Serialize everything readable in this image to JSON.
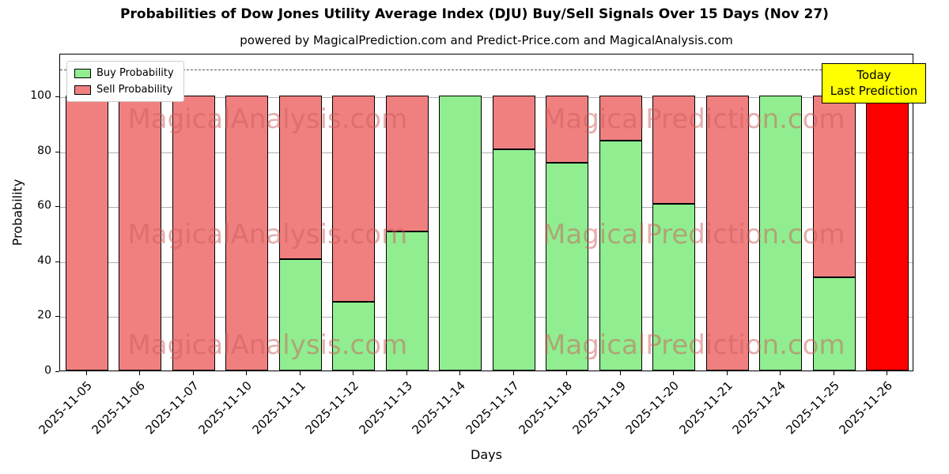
{
  "title": "Probabilities of Dow Jones Utility Average Index (DJU) Buy/Sell Signals Over 15 Days (Nov 27)",
  "subtitle": "powered by MagicalPrediction.com and Predict-Price.com and MagicalAnalysis.com",
  "legend": {
    "buy": "Buy Probability",
    "sell": "Sell Probability"
  },
  "annotation": {
    "line1": "Today",
    "line2": "Last Prediction"
  },
  "watermarks": [
    "MagicalAnalysis.com",
    "MagicalPrediction.com"
  ],
  "colors": {
    "buy": "#90ee90",
    "sell": "#f08080",
    "today_bar": "#ff0000",
    "annotation_bg": "#ffff00",
    "grid": "#b0b0b0",
    "watermark": "rgba(205,92,92,0.5)",
    "bar_edge": "#000000"
  },
  "chart_data": {
    "type": "bar",
    "stacked": true,
    "title": "Probabilities of Dow Jones Utility Average Index (DJU) Buy/Sell Signals Over 15 Days (Nov 27)",
    "xlabel": "Days",
    "ylabel": "Probability",
    "ylim": [
      0,
      115.5
    ],
    "yticks": [
      0,
      20,
      40,
      60,
      80,
      100
    ],
    "dashed_line_y": 110,
    "grid": "horizontal",
    "legend_position": "upper-left",
    "categories": [
      "2025-11-05",
      "2025-11-06",
      "2025-11-07",
      "2025-11-10",
      "2025-11-11",
      "2025-11-12",
      "2025-11-13",
      "2025-11-14",
      "2025-11-17",
      "2025-11-18",
      "2025-11-19",
      "2025-11-20",
      "2025-11-21",
      "2025-11-24",
      "2025-11-25",
      "2025-11-26"
    ],
    "series": [
      {
        "name": "Buy Probability",
        "color": "#90ee90",
        "values": [
          0,
          0,
          0,
          0,
          40.5,
          25,
          50.5,
          100,
          80.5,
          75.5,
          83.5,
          60.5,
          0,
          100,
          34,
          0
        ]
      },
      {
        "name": "Sell Probability",
        "color": "#f08080",
        "values": [
          100,
          100,
          100,
          100,
          59.5,
          75,
          49.5,
          0,
          19.5,
          24.5,
          16.5,
          39.5,
          100,
          0,
          66,
          100
        ]
      }
    ],
    "last_bar_note": "final bar (2025-11-26) drawn in bright red as Today / Last Prediction"
  }
}
